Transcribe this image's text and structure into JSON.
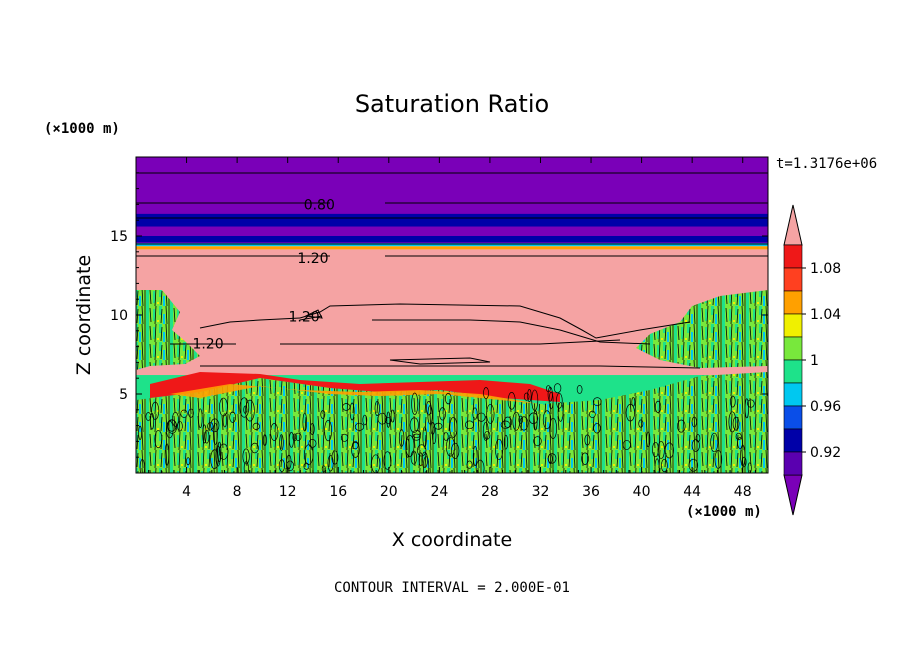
{
  "chart_data": {
    "type": "heatmap",
    "title": "Saturation Ratio",
    "xlabel": "X coordinate",
    "ylabel": "Z coordinate",
    "x_unit_label": "(×1000 m)",
    "y_unit_label": "(×1000 m)",
    "time_label": "t=1.3176e+06",
    "footer": "CONTOUR INTERVAL = 2.000E-01",
    "xlim": [
      0,
      50
    ],
    "ylim": [
      0,
      20
    ],
    "xticks": [
      4,
      8,
      12,
      16,
      20,
      24,
      28,
      32,
      36,
      40,
      44,
      48
    ],
    "yticks": [
      5,
      10,
      15
    ],
    "colorbar": {
      "levels": [
        0.9,
        0.92,
        0.94,
        0.96,
        0.98,
        1.0,
        1.02,
        1.04,
        1.06,
        1.08,
        1.1
      ],
      "tick_labels": [
        "0.92",
        "0.96",
        "1",
        "1.04",
        "1.08"
      ],
      "colors": [
        "#7a00b8",
        "#5a00b0",
        "#0000a8",
        "#0a4ee8",
        "#00c8f0",
        "#1ee28a",
        "#78e83c",
        "#f0f000",
        "#ffa000",
        "#ff4020",
        "#ef1818",
        "#f5a3a3"
      ],
      "extend": "both"
    },
    "bands": [
      {
        "z_from": 14.4,
        "z_to": 20.0,
        "value": 0.89
      },
      {
        "z_from": 15.6,
        "z_to": 16.4,
        "value": 0.92
      },
      {
        "z_from": 14.6,
        "z_to": 15.0,
        "value": 0.93
      },
      {
        "z_from": 14.35,
        "z_to": 14.55,
        "value": 0.97
      },
      {
        "z_from": 14.15,
        "z_to": 14.35,
        "value": 1.05
      },
      {
        "z_from": 5.5,
        "z_to": 14.15,
        "value": 1.12
      },
      {
        "z_from": 0.0,
        "z_to": 6.2,
        "value": 0.99
      }
    ],
    "contours": [
      {
        "label": "0.80",
        "label_at": [
          14.5,
          17.0
        ]
      },
      {
        "label": "1.20",
        "label_at": [
          14.0,
          13.6
        ]
      },
      {
        "label": "1.20",
        "label_at": [
          13.3,
          9.9
        ]
      },
      {
        "label": "1.20",
        "label_at": [
          5.7,
          8.2
        ]
      }
    ]
  }
}
